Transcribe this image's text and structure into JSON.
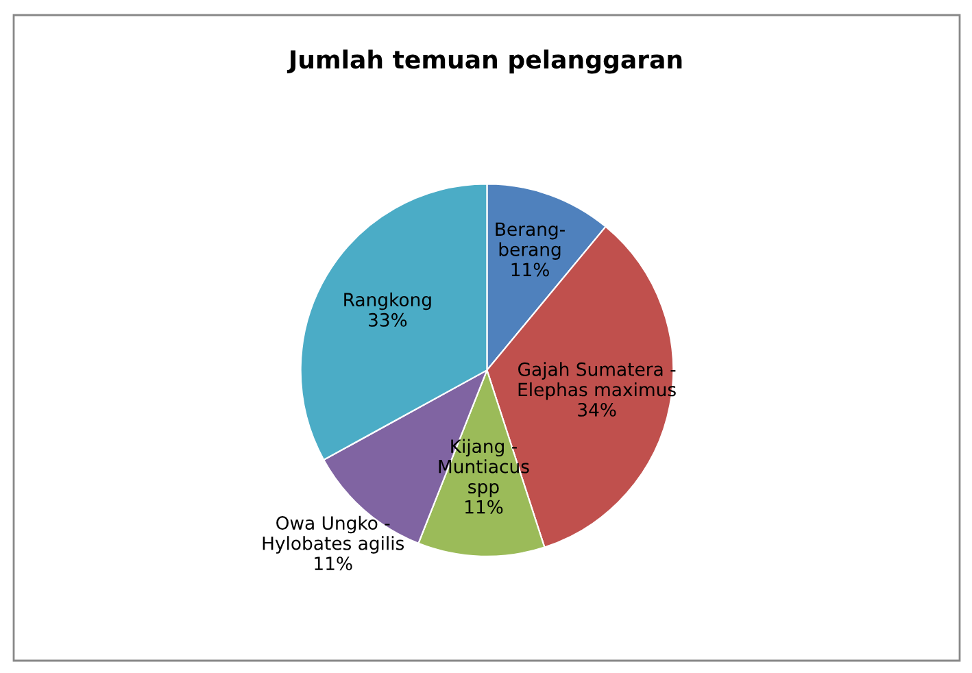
{
  "chart_data": {
    "type": "pie",
    "title": "Jumlah temuan pelanggaran",
    "categories": [
      "Berang-\nberang",
      "Gajah Sumatera -\nElephas maximus",
      "Kijang -\nMuntiacus\nspp",
      "Owa Ungko -\nHylobates agilis",
      "Rangkong"
    ],
    "values": [
      11,
      34,
      11,
      11,
      33
    ],
    "value_labels": [
      "11%",
      "34%",
      "11%",
      "11%",
      "33%"
    ],
    "colors": [
      "#4f81bd",
      "#c0504d",
      "#9bbb59",
      "#8064a2",
      "#4bacc6"
    ],
    "legend": false
  }
}
